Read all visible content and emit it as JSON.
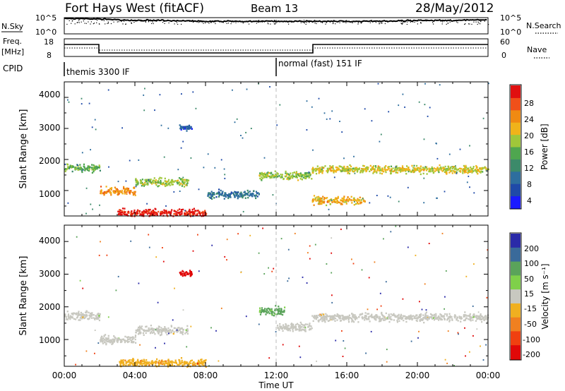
{
  "header": {
    "station": "Fort Hays West (fitACF)",
    "beam": "Beam 13",
    "date": "28/May/2012"
  },
  "nsky_panel": {
    "left_label": "N.Sky",
    "right_label": "N.Search",
    "right_ticks": [
      "10^5",
      "10^0"
    ],
    "left_ticks": [
      "10^5",
      "10^0"
    ]
  },
  "freq_panel": {
    "left_label_1": "Freq.",
    "left_label_2": "[MHz]",
    "left_ticks": [
      "18",
      "8"
    ],
    "right_ticks": [
      "60",
      "0"
    ],
    "right_label": "Nave"
  },
  "cpid_panel": {
    "label": "CPID",
    "segments": [
      {
        "text": "themis 3300 IF",
        "start_hour": 0
      },
      {
        "text": "normal (fast) 151 IF",
        "start_hour": 12
      }
    ]
  },
  "x_axis": {
    "label": "Time UT",
    "tick_labels": [
      "00:00",
      "04:00",
      "08:00",
      "12:00",
      "16:00",
      "20:00",
      "00:00"
    ]
  },
  "power_panel": {
    "ylabel": "Slant Range [km]",
    "y_tick_labels": [
      "4000",
      "3000",
      "2000",
      "1000"
    ],
    "colorbar_label": "Power [dB]",
    "colorbar_ticks": [
      "28",
      "24",
      "20",
      "16",
      "12",
      "8",
      "4"
    ]
  },
  "velocity_panel": {
    "ylabel": "Slant Range [km]",
    "y_tick_labels": [
      "4000",
      "3000",
      "2000",
      "1000"
    ],
    "colorbar_label": "Velocity [m s⁻¹]",
    "colorbar_ticks": [
      "200",
      "100",
      "50",
      "15",
      "-15",
      "-50",
      "-100",
      "-200"
    ]
  },
  "chart_data": [
    {
      "type": "line",
      "name_label": "N.Sky",
      "x": [
        0,
        2,
        4,
        6,
        8,
        10,
        12,
        14,
        16,
        18,
        20,
        22,
        24
      ],
      "y": [
        100000,
        60000,
        20000,
        20000,
        10000,
        10000,
        10000,
        10000,
        10000,
        10000,
        20000,
        20000,
        40000
      ],
      "xlim": [
        0,
        24
      ],
      "yscale": "log",
      "ylim": [
        1,
        100000
      ]
    },
    {
      "type": "line",
      "name_label": "Freq.",
      "x": [
        0,
        2,
        2,
        14,
        14,
        24
      ],
      "y": [
        15.5,
        15.5,
        11.3,
        11.3,
        15.5,
        15.5
      ],
      "xlim": [
        0,
        24
      ],
      "ylim": [
        8,
        18
      ],
      "xlabel": "Time UT",
      "ylabel": "[MHz]"
    },
    {
      "type": "heatmap",
      "title": "Power [dB]",
      "xlabel": "Time UT",
      "ylabel": "Slant Range [km]",
      "xlim": [
        0,
        24
      ],
      "ylim": [
        180,
        4500
      ],
      "colorbar_range": [
        0,
        30
      ],
      "colorbar_ticks": [
        4,
        8,
        12,
        16,
        20,
        24,
        28
      ],
      "features": [
        {
          "feature": "band",
          "t_start": 0,
          "t_end": 2,
          "range_km": 1750,
          "power_db": 14
        },
        {
          "feature": "band",
          "t_start": 2,
          "t_end": 4,
          "range_km": 1000,
          "power_db": 22
        },
        {
          "feature": "band",
          "t_start": 4,
          "t_end": 7,
          "range_km": 1300,
          "power_db": 16
        },
        {
          "feature": "band",
          "t_start": 3,
          "t_end": 8,
          "range_km": 300,
          "power_db": 28
        },
        {
          "feature": "band",
          "t_start": 8,
          "t_end": 11,
          "range_km": 900,
          "power_db": 8
        },
        {
          "feature": "band",
          "t_start": 11,
          "t_end": 14,
          "range_km": 1500,
          "power_db": 16
        },
        {
          "feature": "band",
          "t_start": 14,
          "t_end": 17,
          "range_km": 700,
          "power_db": 20
        },
        {
          "feature": "band",
          "t_start": 14,
          "t_end": 24,
          "range_km": 1700,
          "power_db": 18
        },
        {
          "feature": "patch",
          "t_start": 6.5,
          "t_end": 7.2,
          "range_km": 3050,
          "power_db": 6
        }
      ]
    },
    {
      "type": "heatmap",
      "title": "Velocity [m s⁻¹]",
      "xlabel": "Time UT",
      "ylabel": "Slant Range [km]",
      "xlim": [
        0,
        24
      ],
      "ylim": [
        180,
        4500
      ],
      "colorbar_range": [
        -250,
        250
      ],
      "colorbar_ticks": [
        200,
        100,
        50,
        15,
        -15,
        -50,
        -100,
        -200
      ],
      "features": [
        {
          "feature": "band",
          "t_start": 0,
          "t_end": 2,
          "range_km": 1750,
          "velocity": 0
        },
        {
          "feature": "band",
          "t_start": 2,
          "t_end": 4,
          "range_km": 1000,
          "velocity": 0
        },
        {
          "feature": "band",
          "t_start": 4,
          "t_end": 7,
          "range_km": 1300,
          "velocity": 0
        },
        {
          "feature": "band",
          "t_start": 3,
          "t_end": 8,
          "range_km": 300,
          "velocity": -40
        },
        {
          "feature": "band",
          "t_start": 11,
          "t_end": 12.5,
          "range_km": 1900,
          "velocity": 40
        },
        {
          "feature": "band",
          "t_start": 12,
          "t_end": 14,
          "range_km": 1400,
          "velocity": 0
        },
        {
          "feature": "band",
          "t_start": 14,
          "t_end": 24,
          "range_km": 1700,
          "velocity": 0
        },
        {
          "feature": "patch",
          "t_start": 6.5,
          "t_end": 7.2,
          "range_km": 3050,
          "velocity": -220
        }
      ]
    }
  ]
}
